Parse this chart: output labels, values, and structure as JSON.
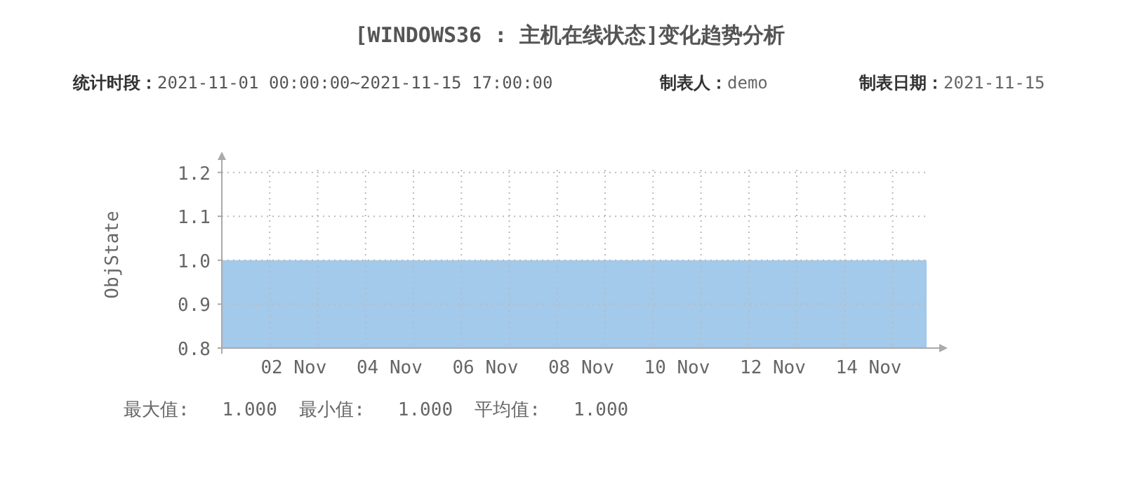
{
  "chart_data": {
    "type": "area",
    "title": "[WINDOWS36 : 主机在线状态]变化趋势分析",
    "subtitle": "**统计时段：**2021-11-01 00:00:00~2021-11-15 17:00:00",
    "annotations": [
      "**制表人：**demo",
      "**制表日期：**2021-11-15",
      "最大值:   1.000  最小值:   1.000  平均值:   1.000"
    ],
    "ylabel": "ObjState",
    "x": [
      "2021-11-01T00:00",
      "2021-11-15T17:00"
    ],
    "values": [
      1,
      1
    ],
    "color": "#a3c9eb",
    "xlim": [
      "2021-11-01T00:00",
      "2021-11-15T17:00"
    ],
    "xticks": [
      {
        "value": "2021-11-02T00:00",
        "label": null
      },
      {
        "value": "2021-11-03T00:00",
        "label": null
      },
      {
        "value": "2021-11-04T00:00",
        "label": null
      },
      {
        "value": "2021-11-05T00:00",
        "label": null
      },
      {
        "value": "2021-11-06T00:00",
        "label": null
      },
      {
        "value": "2021-11-07T00:00",
        "label": null
      },
      {
        "value": "2021-11-08T00:00",
        "label": null
      },
      {
        "value": "2021-11-09T00:00",
        "label": null
      },
      {
        "value": "2021-11-10T00:00",
        "label": null
      },
      {
        "value": "2021-11-11T00:00",
        "label": null
      },
      {
        "value": "2021-11-12T00:00",
        "label": null
      },
      {
        "value": "2021-11-13T00:00",
        "label": null
      },
      {
        "value": "2021-11-14T00:00",
        "label": null
      },
      {
        "value": "2021-11-15T00:00",
        "label": null
      },
      {
        "value": "2021-11-02T12:00",
        "label": "02 Nov"
      },
      {
        "value": "2021-11-04T12:00",
        "label": "04 Nov"
      },
      {
        "value": "2021-11-06T12:00",
        "label": "06 Nov"
      },
      {
        "value": "2021-11-08T12:00",
        "label": "08 Nov"
      },
      {
        "value": "2021-11-10T12:00",
        "label": "10 Nov"
      },
      {
        "value": "2021-11-12T12:00",
        "label": "12 Nov"
      },
      {
        "value": "2021-11-14T12:00",
        "label": "14 Nov"
      }
    ],
    "ylim": [
      0.8,
      1.225
    ],
    "yticks": [
      {
        "value": 0.8,
        "label": "0.8"
      },
      {
        "value": 0.9,
        "label": "0.9"
      },
      {
        "value": 1,
        "label": "1.0"
      },
      {
        "value": 1.1,
        "label": "1.1"
      },
      {
        "value": 1.2,
        "label": "1.2"
      }
    ],
    "grid": true
  }
}
